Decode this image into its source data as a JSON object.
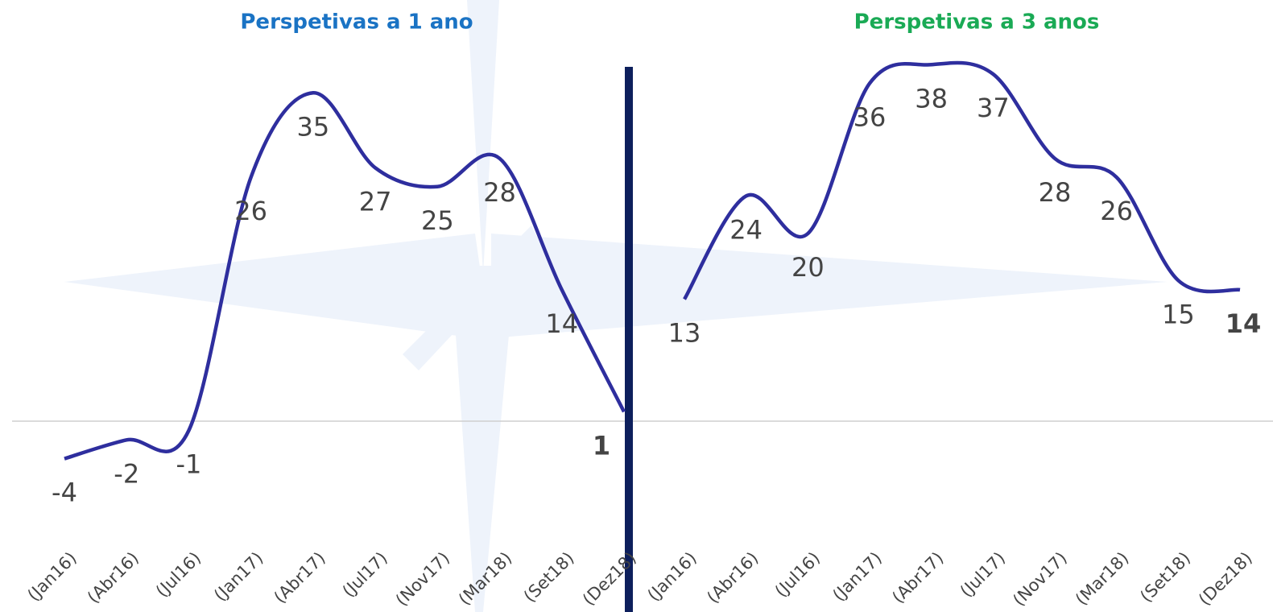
{
  "chart_data": [
    {
      "type": "line",
      "title": "Perspetivas a 1 ano",
      "title_color": "#1a73c4",
      "categories": [
        "(Jan16)",
        "(Abr16)",
        "(Jul16)",
        "(Jan17)",
        "(Abr17)",
        "(Jul17)",
        "(Nov17)",
        "(Mar18)",
        "(Set18)",
        "(Dez18)"
      ],
      "values": [
        -4,
        -2,
        -1,
        26,
        35,
        27,
        25,
        28,
        14,
        1
      ],
      "color": "#2e2e9e",
      "ylim": [
        -8,
        44
      ]
    },
    {
      "type": "line",
      "title": "Perspetivas a 3 anos",
      "title_color": "#1aaa55",
      "categories": [
        "(Jan16)",
        "(Abr16)",
        "(Jul16)",
        "(Jan17)",
        "(Abr17)",
        "(Jul17)",
        "(Nov17)",
        "(Mar18)",
        "(Set18)",
        "(Dez18)"
      ],
      "values": [
        13,
        24,
        20,
        36,
        38,
        37,
        28,
        26,
        15,
        14
      ],
      "color": "#2e2e9e",
      "ylim": [
        -8,
        44
      ]
    }
  ]
}
